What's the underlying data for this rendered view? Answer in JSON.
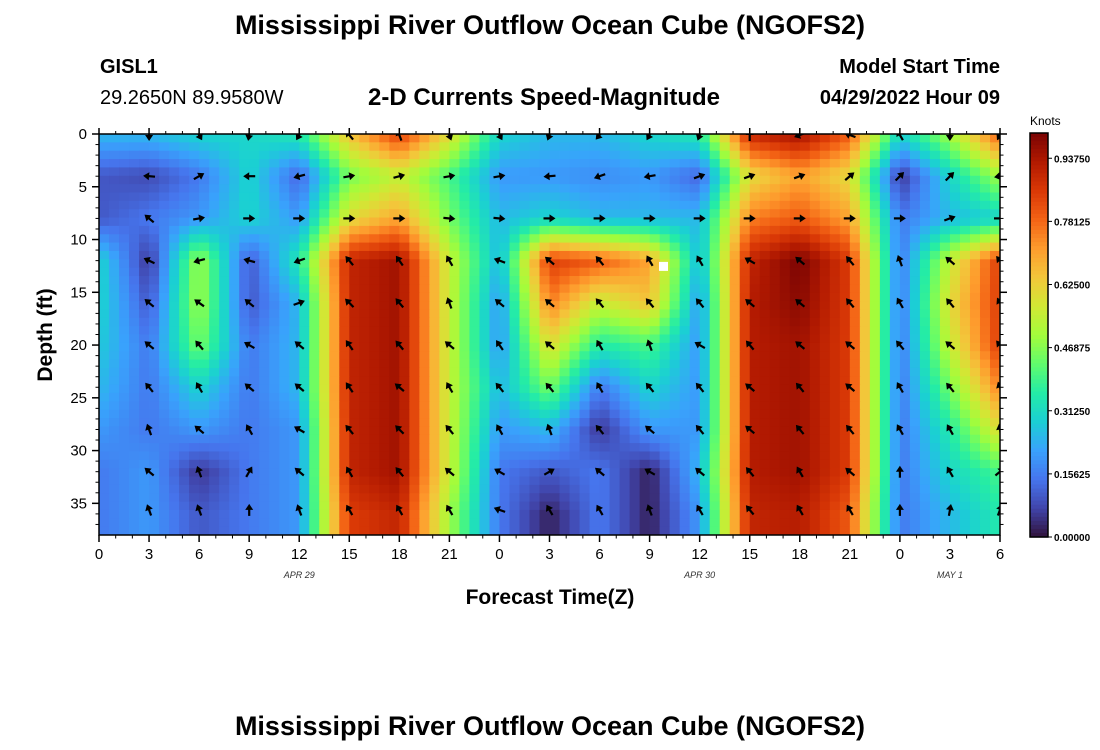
{
  "title": "Mississippi River Outflow Ocean Cube (NGOFS2)",
  "station": {
    "name": "GISL1",
    "coords": "29.2650N  89.9580W"
  },
  "subtitle": "2-D Currents Speed-Magnitude",
  "model_start": {
    "label": "Model Start Time",
    "value": "04/29/2022 Hour 09"
  },
  "second_title": "Mississippi River Outflow Ocean Cube (NGOFS2)",
  "chart_data": {
    "type": "heatmap",
    "xlabel": "Forecast Time(Z)",
    "ylabel": "Depth (ft)",
    "x_ticks": [
      "0",
      "3",
      "6",
      "9",
      "12",
      "15",
      "18",
      "21",
      "0",
      "3",
      "6",
      "9",
      "12",
      "15",
      "18",
      "21",
      "0",
      "3",
      "6"
    ],
    "x_range_hours": [
      0,
      54
    ],
    "date_labels": [
      {
        "text": "APR 29",
        "hour": 12
      },
      {
        "text": "APR 30",
        "hour": 36
      },
      {
        "text": "MAY 1",
        "hour": 51
      }
    ],
    "y_ticks": [
      0,
      5,
      10,
      15,
      20,
      25,
      30,
      35
    ],
    "y_range": [
      0,
      38
    ],
    "colorbar": {
      "unit": "Knots",
      "ticks": [
        "0.93750",
        "0.78125",
        "0.62500",
        "0.46875",
        "0.31250",
        "0.15625",
        "0.00000"
      ],
      "range": [
        0,
        1.0
      ]
    },
    "colormap": [
      "#30123b",
      "#4145ab",
      "#4675ed",
      "#39a2fc",
      "#1bcfd4",
      "#24eca6",
      "#61fc6c",
      "#a4fc3b",
      "#d1e834",
      "#f3c63a",
      "#fe9b2d",
      "#f36315",
      "#d93806",
      "#b11901",
      "#7a0403"
    ],
    "depths": [
      0,
      4,
      8,
      12,
      16,
      20,
      24,
      28,
      32,
      36
    ],
    "hours": [
      0,
      3,
      6,
      9,
      12,
      15,
      18,
      21,
      24,
      27,
      30,
      33,
      36,
      39,
      42,
      45,
      48,
      51,
      54
    ],
    "speed_grid": [
      [
        0.25,
        0.25,
        0.3,
        0.3,
        0.35,
        0.65,
        0.85,
        0.6,
        0.3,
        0.25,
        0.25,
        0.3,
        0.35,
        0.9,
        0.95,
        0.8,
        0.3,
        0.5,
        0.8
      ],
      [
        0.1,
        0.08,
        0.15,
        0.3,
        0.12,
        0.45,
        0.55,
        0.4,
        0.2,
        0.2,
        0.18,
        0.2,
        0.12,
        0.6,
        0.7,
        0.6,
        0.05,
        0.3,
        0.5
      ],
      [
        0.1,
        0.15,
        0.2,
        0.3,
        0.2,
        0.6,
        0.7,
        0.45,
        0.25,
        0.3,
        0.25,
        0.25,
        0.25,
        0.75,
        0.8,
        0.7,
        0.15,
        0.25,
        0.3
      ],
      [
        0.3,
        0.05,
        0.5,
        0.1,
        0.35,
        0.9,
        0.95,
        0.55,
        0.25,
        0.85,
        0.8,
        0.7,
        0.25,
        0.9,
        1.0,
        0.85,
        0.15,
        0.55,
        0.85
      ],
      [
        0.3,
        0.1,
        0.5,
        0.1,
        0.25,
        0.9,
        0.95,
        0.55,
        0.2,
        0.75,
        0.55,
        0.65,
        0.2,
        0.92,
        0.98,
        0.85,
        0.15,
        0.6,
        0.85
      ],
      [
        0.28,
        0.15,
        0.45,
        0.15,
        0.25,
        0.9,
        0.95,
        0.55,
        0.2,
        0.6,
        0.35,
        0.4,
        0.2,
        0.92,
        0.95,
        0.85,
        0.15,
        0.55,
        0.85
      ],
      [
        0.25,
        0.15,
        0.3,
        0.15,
        0.25,
        0.9,
        0.95,
        0.55,
        0.25,
        0.45,
        0.15,
        0.3,
        0.2,
        0.92,
        0.95,
        0.85,
        0.15,
        0.45,
        0.75
      ],
      [
        0.2,
        0.15,
        0.2,
        0.15,
        0.2,
        0.9,
        0.95,
        0.55,
        0.2,
        0.25,
        0.05,
        0.2,
        0.2,
        0.92,
        0.95,
        0.85,
        0.15,
        0.35,
        0.6
      ],
      [
        0.15,
        0.2,
        0.05,
        0.15,
        0.2,
        0.9,
        0.95,
        0.55,
        0.15,
        0.1,
        0.15,
        0.02,
        0.25,
        0.92,
        0.95,
        0.85,
        0.15,
        0.3,
        0.4
      ],
      [
        0.15,
        0.2,
        0.1,
        0.15,
        0.2,
        0.85,
        0.9,
        0.5,
        0.15,
        0.02,
        0.15,
        0.02,
        0.2,
        0.9,
        0.92,
        0.8,
        0.15,
        0.25,
        0.35
      ]
    ],
    "arrows": {
      "hours": [
        3,
        6,
        9,
        12,
        15,
        18,
        21,
        24,
        27,
        30,
        33,
        36,
        39,
        42,
        45,
        48,
        51,
        54
      ],
      "depths": [
        0,
        4,
        8,
        12,
        16,
        20,
        24,
        28,
        32,
        36
      ],
      "direction_deg": [
        [
          270,
          300,
          260,
          240,
          130,
          110,
          290,
          300,
          250,
          230,
          240,
          250,
          90,
          200,
          160,
          120,
          270,
          240
        ],
        [
          175,
          30,
          180,
          195,
          10,
          15,
          10,
          10,
          185,
          200,
          190,
          20,
          20,
          20,
          40,
          45,
          45,
          190
        ],
        [
          140,
          10,
          0,
          0,
          0,
          0,
          355,
          355,
          0,
          0,
          0,
          0,
          0,
          0,
          0,
          0,
          20,
          0
        ],
        [
          155,
          195,
          165,
          200,
          130,
          125,
          120,
          160,
          140,
          130,
          120,
          120,
          150,
          140,
          130,
          110,
          140,
          130
        ],
        [
          140,
          145,
          140,
          20,
          135,
          130,
          110,
          140,
          140,
          130,
          130,
          130,
          140,
          140,
          130,
          120,
          130,
          120
        ],
        [
          140,
          130,
          150,
          140,
          125,
          130,
          140,
          125,
          140,
          120,
          110,
          150,
          130,
          140,
          140,
          130,
          140,
          130
        ],
        [
          130,
          120,
          140,
          140,
          125,
          140,
          120,
          130,
          130,
          120,
          130,
          130,
          140,
          130,
          140,
          120,
          130,
          110
        ],
        [
          110,
          140,
          120,
          150,
          130,
          135,
          130,
          120,
          110,
          130,
          140,
          130,
          140,
          130,
          130,
          120,
          120,
          100
        ],
        [
          140,
          110,
          60,
          140,
          120,
          130,
          140,
          150,
          30,
          140,
          150,
          140,
          130,
          120,
          140,
          90,
          120,
          40
        ],
        [
          110,
          110,
          90,
          110,
          120,
          120,
          120,
          160,
          120,
          120,
          110,
          120,
          130,
          120,
          120,
          90,
          80,
          70
        ]
      ]
    },
    "marker": {
      "hour": 33.8,
      "depth": 12.5
    }
  }
}
